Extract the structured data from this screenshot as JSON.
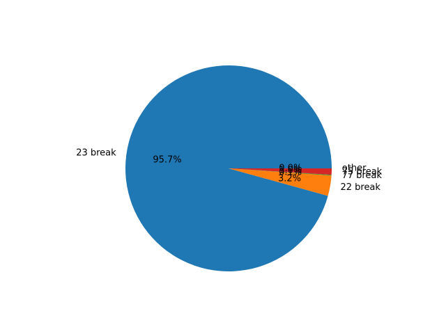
{
  "chart_data": {
    "type": "pie",
    "title": "",
    "start_angle_deg": 0,
    "direction": "counterclockwise",
    "slices": [
      {
        "label": "23 break",
        "value": 95.7,
        "pct_label": "95.7%",
        "color": "#1f77b4"
      },
      {
        "label": "22 break",
        "value": 3.2,
        "pct_label": "3.2%",
        "color": "#ff7f0e"
      },
      {
        "label": "77 break",
        "value": 0.1,
        "pct_label": "0.1%",
        "color": "#2ca02c"
      },
      {
        "label": "75 break",
        "value": 1.0,
        "pct_label": "1.0%",
        "color": "#d62728"
      },
      {
        "label": "other",
        "value": 0.0,
        "pct_label": "0.0%",
        "color": "#9467bd"
      }
    ]
  }
}
